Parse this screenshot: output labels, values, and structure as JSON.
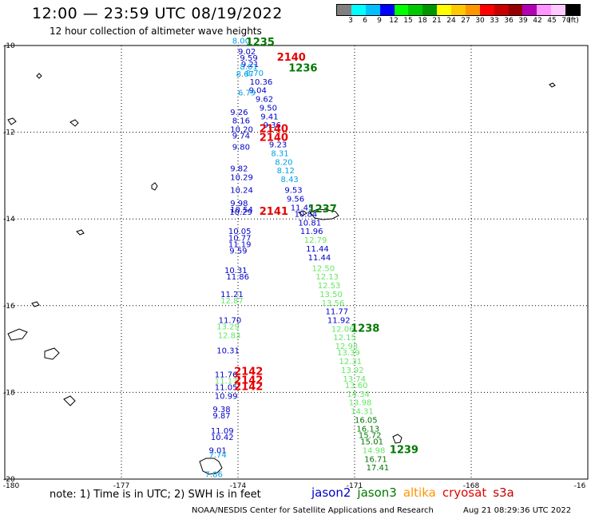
{
  "title": "12:00 — 23:59 UTC 08/19/2022",
  "subtitle": "12 hour collection of altimeter wave heights",
  "colorbar": {
    "colors": [
      "#808080",
      "#00ffff",
      "#00bfff",
      "#0000ff",
      "#00ff00",
      "#00c800",
      "#009600",
      "#ffff00",
      "#ffc800",
      "#ff9600",
      "#ff0000",
      "#c80000",
      "#960000",
      "#b400b4",
      "#ff96ff",
      "#ffc8ff",
      "#000000"
    ],
    "ticks": [
      "3",
      "6",
      "9",
      "12",
      "15",
      "18",
      "21",
      "24",
      "27",
      "30",
      "33",
      "36",
      "39",
      "42",
      "45",
      "70",
      "(ft)"
    ]
  },
  "axes": {
    "x_labels": [
      "-180",
      "-177",
      "-174",
      "-171",
      "-168",
      "-16"
    ],
    "y_labels": [
      "-10",
      "-12",
      "-14",
      "-16",
      "-18",
      "-20"
    ]
  },
  "satellite_colors": {
    "jason2": "#0000c8",
    "jason3": "#007800",
    "altika": "#ff9600",
    "cryosat": "#e60000",
    "s3a": "#c80000",
    "jason3_light": "#64e664",
    "jason2_light": "#00a0e6"
  },
  "tracks": [
    {
      "id": "1235",
      "sat": "jason3",
      "lon": -173.8,
      "lat": -10.0,
      "dir": "label"
    },
    {
      "id": "2140",
      "sat": "cryosat",
      "lon": -173.0,
      "lat": -10.35,
      "dir": "label"
    },
    {
      "id": "1236",
      "sat": "jason3",
      "lon": -172.7,
      "lat": -10.6,
      "dir": "label"
    },
    {
      "id": "2140",
      "sat": "cryosat",
      "lon": -173.45,
      "lat": -12.0,
      "dir": "label"
    },
    {
      "id": "2140",
      "sat": "cryosat",
      "lon": -173.45,
      "lat": -12.2,
      "dir": "label"
    },
    {
      "id": "1237",
      "sat": "jason3",
      "lon": -172.2,
      "lat": -13.85,
      "dir": "label"
    },
    {
      "id": "2141",
      "sat": "cryosat",
      "lon": -173.45,
      "lat": -13.9,
      "dir": "label"
    },
    {
      "id": "1238",
      "sat": "jason3",
      "lon": -171.1,
      "lat": -16.6,
      "dir": "label"
    },
    {
      "id": "2142",
      "sat": "cryosat",
      "lon": -174.1,
      "lat": -17.6,
      "dir": "label"
    },
    {
      "id": "2142",
      "sat": "cryosat",
      "lon": -174.1,
      "lat": -17.8,
      "dir": "label"
    },
    {
      "id": "2142",
      "sat": "cryosat",
      "lon": -174.1,
      "lat": -17.95,
      "dir": "label"
    },
    {
      "id": "1239",
      "sat": "jason3",
      "lon": -170.1,
      "lat": -19.4,
      "dir": "label"
    }
  ],
  "observations": [
    {
      "v": "8.00",
      "c": "jason2_light",
      "lon": -174.15,
      "lat": -9.95
    },
    {
      "v": "9.02",
      "c": "jason2",
      "lon": -174.0,
      "lat": -10.2
    },
    {
      "v": "9.59",
      "c": "jason2",
      "lon": -173.95,
      "lat": -10.35
    },
    {
      "v": "9.21",
      "c": "jason2",
      "lon": -173.92,
      "lat": -10.5
    },
    {
      "v": "8.01",
      "c": "jason2_light",
      "lon": -173.95,
      "lat": -10.55
    },
    {
      "v": "8.70",
      "c": "jason2_light",
      "lon": -173.8,
      "lat": -10.7
    },
    {
      "v": "8.67",
      "c": "jason2_light",
      "lon": -174.05,
      "lat": -10.72
    },
    {
      "v": "10.36",
      "c": "jason2",
      "lon": -173.7,
      "lat": -10.9
    },
    {
      "v": "9.04",
      "c": "jason2",
      "lon": -173.72,
      "lat": -11.1
    },
    {
      "v": "6.79",
      "c": "jason2_light",
      "lon": -174.0,
      "lat": -11.15
    },
    {
      "v": "9.62",
      "c": "jason2",
      "lon": -173.55,
      "lat": -11.3
    },
    {
      "v": "9.50",
      "c": "jason2",
      "lon": -173.45,
      "lat": -11.5
    },
    {
      "v": "9.26",
      "c": "jason2",
      "lon": -174.2,
      "lat": -11.6
    },
    {
      "v": "9.41",
      "c": "jason2",
      "lon": -173.42,
      "lat": -11.7
    },
    {
      "v": "8.16",
      "c": "jason2",
      "lon": -174.15,
      "lat": -11.8
    },
    {
      "v": "9.36",
      "c": "jason2",
      "lon": -173.35,
      "lat": -11.9
    },
    {
      "v": "10.20",
      "c": "jason2",
      "lon": -174.2,
      "lat": -12.0
    },
    {
      "v": "9.74",
      "c": "jason2",
      "lon": -174.15,
      "lat": -12.15
    },
    {
      "v": "9.23",
      "c": "jason2",
      "lon": -173.2,
      "lat": -12.35
    },
    {
      "v": "9.80",
      "c": "jason2",
      "lon": -174.15,
      "lat": -12.4
    },
    {
      "v": "8.31",
      "c": "jason2_light",
      "lon": -173.15,
      "lat": -12.55
    },
    {
      "v": "8.20",
      "c": "jason2_light",
      "lon": -173.05,
      "lat": -12.75
    },
    {
      "v": "9.82",
      "c": "jason2",
      "lon": -174.2,
      "lat": -12.9
    },
    {
      "v": "8.12",
      "c": "jason2_light",
      "lon": -173.0,
      "lat": -12.95
    },
    {
      "v": "10.29",
      "c": "jason2",
      "lon": -174.2,
      "lat": -13.1
    },
    {
      "v": "8.43",
      "c": "jason2_light",
      "lon": -172.9,
      "lat": -13.15
    },
    {
      "v": "10.24",
      "c": "jason2",
      "lon": -174.2,
      "lat": -13.4
    },
    {
      "v": "9.53",
      "c": "jason2",
      "lon": -172.8,
      "lat": -13.4
    },
    {
      "v": "9.56",
      "c": "jason2",
      "lon": -172.75,
      "lat": -13.6
    },
    {
      "v": "9.98",
      "c": "jason2",
      "lon": -174.2,
      "lat": -13.7
    },
    {
      "v": "11.45",
      "c": "jason2",
      "lon": -172.65,
      "lat": -13.8
    },
    {
      "v": "10.54",
      "c": "jason2",
      "lon": -174.2,
      "lat": -13.85
    },
    {
      "v": "10.29",
      "c": "jason2",
      "lon": -174.22,
      "lat": -13.9
    },
    {
      "v": "10.84",
      "c": "jason2",
      "lon": -172.55,
      "lat": -13.95
    },
    {
      "v": "10.81",
      "c": "jason2",
      "lon": -172.45,
      "lat": -14.15
    },
    {
      "v": "11.96",
      "c": "jason2",
      "lon": -172.4,
      "lat": -14.35
    },
    {
      "v": "10.05",
      "c": "jason2",
      "lon": -174.25,
      "lat": -14.35
    },
    {
      "v": "10.77",
      "c": "jason2",
      "lon": -174.25,
      "lat": -14.5
    },
    {
      "v": "12.79",
      "c": "jason3_light",
      "lon": -172.3,
      "lat": -14.55
    },
    {
      "v": "11.19",
      "c": "jason2",
      "lon": -174.25,
      "lat": -14.65
    },
    {
      "v": "11.44",
      "c": "jason2",
      "lon": -172.25,
      "lat": -14.75
    },
    {
      "v": "9.59",
      "c": "jason2",
      "lon": -174.22,
      "lat": -14.8
    },
    {
      "v": "11.44",
      "c": "jason2",
      "lon": -172.2,
      "lat": -14.95
    },
    {
      "v": "12.50",
      "c": "jason3_light",
      "lon": -172.1,
      "lat": -15.2
    },
    {
      "v": "10.31",
      "c": "jason2",
      "lon": -174.35,
      "lat": -15.25
    },
    {
      "v": "11.86",
      "c": "jason2",
      "lon": -174.3,
      "lat": -15.4
    },
    {
      "v": "12.13",
      "c": "jason3_light",
      "lon": -172.0,
      "lat": -15.4
    },
    {
      "v": "12.53",
      "c": "jason3_light",
      "lon": -171.95,
      "lat": -15.6
    },
    {
      "v": "11.21",
      "c": "jason2",
      "lon": -174.45,
      "lat": -15.8
    },
    {
      "v": "13.50",
      "c": "jason3_light",
      "lon": -171.9,
      "lat": -15.8
    },
    {
      "v": "12.87",
      "c": "jason3_light",
      "lon": -174.45,
      "lat": -15.95
    },
    {
      "v": "13.56",
      "c": "jason3_light",
      "lon": -171.85,
      "lat": -16.0
    },
    {
      "v": "11.77",
      "c": "jason2",
      "lon": -171.75,
      "lat": -16.2
    },
    {
      "v": "11.92",
      "c": "jason2",
      "lon": -171.7,
      "lat": -16.4
    },
    {
      "v": "11.70",
      "c": "jason2",
      "lon": -174.5,
      "lat": -16.4
    },
    {
      "v": "13.29",
      "c": "jason3_light",
      "lon": -174.55,
      "lat": -16.55
    },
    {
      "v": "12.06",
      "c": "jason3_light",
      "lon": -171.6,
      "lat": -16.6
    },
    {
      "v": "12.83",
      "c": "jason3_light",
      "lon": -174.52,
      "lat": -16.75
    },
    {
      "v": "12.15",
      "c": "jason3_light",
      "lon": -171.55,
      "lat": -16.8
    },
    {
      "v": "12.98",
      "c": "jason3_light",
      "lon": -171.5,
      "lat": -17.0
    },
    {
      "v": "10.31",
      "c": "jason2",
      "lon": -174.55,
      "lat": -17.1
    },
    {
      "v": "13.39",
      "c": "jason3_light",
      "lon": -171.45,
      "lat": -17.15
    },
    {
      "v": "12.31",
      "c": "jason3_light",
      "lon": -171.4,
      "lat": -17.35
    },
    {
      "v": "13.92",
      "c": "jason3_light",
      "lon": -171.35,
      "lat": -17.55
    },
    {
      "v": "11.76",
      "c": "jason2",
      "lon": -174.6,
      "lat": -17.65
    },
    {
      "v": "13.74",
      "c": "jason3_light",
      "lon": -171.3,
      "lat": -17.75
    },
    {
      "v": "11.17",
      "c": "jason3_light",
      "lon": -174.6,
      "lat": -17.8
    },
    {
      "v": "13.60",
      "c": "jason3_light",
      "lon": -171.25,
      "lat": -17.9
    },
    {
      "v": "11.05",
      "c": "jason2",
      "lon": -174.6,
      "lat": -17.95
    },
    {
      "v": "14.34",
      "c": "jason3_light",
      "lon": -171.2,
      "lat": -18.1
    },
    {
      "v": "10.99",
      "c": "jason2",
      "lon": -174.6,
      "lat": -18.15
    },
    {
      "v": "13.98",
      "c": "jason3_light",
      "lon": -171.15,
      "lat": -18.3
    },
    {
      "v": "14.31",
      "c": "jason3_light",
      "lon": -171.1,
      "lat": -18.5
    },
    {
      "v": "9.38",
      "c": "jason2",
      "lon": -174.65,
      "lat": -18.45
    },
    {
      "v": "9.87",
      "c": "jason2",
      "lon": -174.65,
      "lat": -18.6
    },
    {
      "v": "16.05",
      "c": "jason3",
      "lon": -171.0,
      "lat": -18.7
    },
    {
      "v": "16.13",
      "c": "jason3",
      "lon": -170.95,
      "lat": -18.9
    },
    {
      "v": "11.09",
      "c": "jason2",
      "lon": -174.7,
      "lat": -18.95
    },
    {
      "v": "15.72",
      "c": "jason3",
      "lon": -170.9,
      "lat": -19.05
    },
    {
      "v": "10.42",
      "c": "jason2",
      "lon": -174.7,
      "lat": -19.1
    },
    {
      "v": "15.01",
      "c": "jason3",
      "lon": -170.85,
      "lat": -19.2
    },
    {
      "v": "9.01",
      "c": "jason2",
      "lon": -174.75,
      "lat": -19.4
    },
    {
      "v": "14.98",
      "c": "jason3_light",
      "lon": -170.8,
      "lat": -19.4
    },
    {
      "v": "7.74",
      "c": "jason2_light",
      "lon": -174.75,
      "lat": -19.5
    },
    {
      "v": "16.71",
      "c": "jason3",
      "lon": -170.75,
      "lat": -19.6
    },
    {
      "v": "7.86",
      "c": "jason2_light",
      "lon": -174.85,
      "lat": -19.95
    },
    {
      "v": "17.41",
      "c": "jason3",
      "lon": -170.7,
      "lat": -19.8
    }
  ],
  "note": "note:  1) Time is in UTC;  2) SWH is in feet",
  "legend": [
    {
      "label": "jason2",
      "color": "jason2"
    },
    {
      "label": "jason3",
      "color": "jason3"
    },
    {
      "label": "altika",
      "color": "altika"
    },
    {
      "label": "cryosat",
      "color": "cryosat"
    },
    {
      "label": "s3a",
      "color": "s3a"
    }
  ],
  "credit": "NOAA/NESDIS Center for Satellite Applications and Research",
  "timestamp": "Aug 21 08:29:36 UTC 2022"
}
